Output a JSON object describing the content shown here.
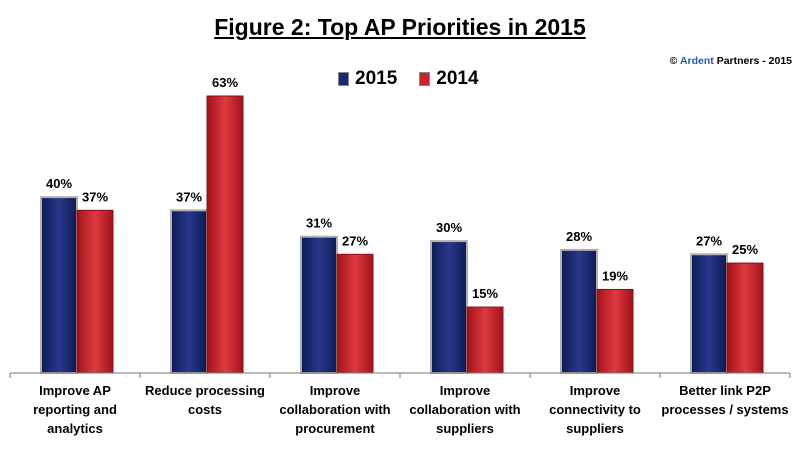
{
  "source": {
    "prefix": "© ",
    "brand": "Ardent",
    "suffix": " Partners - 2015"
  },
  "chart_data": {
    "type": "bar",
    "title": "Figure 2: Top AP Priorities in 2015",
    "categories": [
      [
        "Improve AP",
        "reporting and",
        "analytics"
      ],
      [
        "Reduce processing",
        "costs"
      ],
      [
        "Improve",
        "collaboration with",
        "procurement"
      ],
      [
        "Improve",
        "collaboration with",
        "suppliers"
      ],
      [
        "Improve",
        "connectivity to",
        "suppliers"
      ],
      [
        "Better link P2P",
        "processes / systems"
      ]
    ],
    "series": [
      {
        "name": "2015",
        "values": [
          40,
          37,
          31,
          30,
          28,
          27
        ],
        "labels": [
          "40%",
          "37%",
          "31%",
          "30%",
          "28%",
          "27%"
        ],
        "color": "#1b2a6b"
      },
      {
        "name": "2014",
        "values": [
          37,
          63,
          27,
          15,
          19,
          25
        ],
        "labels": [
          "37%",
          "63%",
          "27%",
          "15%",
          "19%",
          "25%"
        ],
        "color": "#c8232c"
      }
    ],
    "ylim": [
      0,
      63
    ],
    "legend": "top",
    "grid": false
  }
}
